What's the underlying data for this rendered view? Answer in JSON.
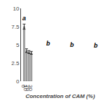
{
  "chart_data": {
    "type": "bar",
    "categories": [
      "0",
      "10",
      "20",
      "30"
    ],
    "values": [
      7.5,
      4.2,
      4.0,
      3.9
    ],
    "errors": [
      0.35,
      0.25,
      0.2,
      0.2
    ],
    "letters": [
      "a",
      "b",
      "b",
      "b"
    ],
    "color": "#b0b0b0",
    "xlabel": "Concentration of CAM (%)",
    "ylim": [
      0,
      10
    ],
    "yticks": [
      0,
      2.5,
      5,
      7.5,
      10
    ],
    "grid": false
  }
}
